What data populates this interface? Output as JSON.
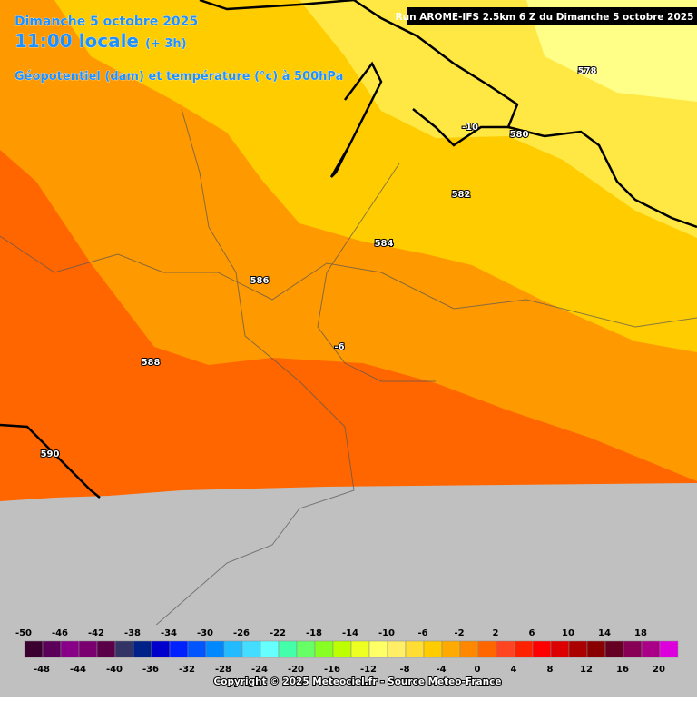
{
  "header": {
    "date": "Dimanche 5 octobre 2025",
    "time": "11:00 locale",
    "offset": "(+ 3h)",
    "field": "Géopotentiel (dam) et température (°c) à 500hPa",
    "run": "Run AROME-IFS 2.5km 6 Z du Dimanche 5 octobre 2025"
  },
  "contour_labels": [
    "578",
    "580",
    "-10",
    "582",
    "584",
    "586",
    "-6",
    "588",
    "590"
  ],
  "colorbar": {
    "values": [
      -50,
      -48,
      -46,
      -44,
      -42,
      -40,
      -38,
      -36,
      -34,
      -32,
      -30,
      -28,
      -26,
      -24,
      -22,
      -20,
      -18,
      -16,
      -14,
      -12,
      -10,
      -8,
      -6,
      -4,
      -2,
      0,
      2,
      4,
      6,
      8,
      10,
      12,
      14,
      16,
      18,
      20
    ],
    "colors": [
      "#3a0030",
      "#5a0058",
      "#880088",
      "#7a0070",
      "#5a0048",
      "#333366",
      "#002288",
      "#0000cc",
      "#0022ff",
      "#0055ff",
      "#0088ff",
      "#22bbff",
      "#44ddff",
      "#66ffff",
      "#44ffaa",
      "#66ff66",
      "#88ff22",
      "#bbff00",
      "#eeff22",
      "#ffff66",
      "#ffee66",
      "#ffdd33",
      "#ffcc00",
      "#ffaa00",
      "#ff8800",
      "#ff6600",
      "#ff4422",
      "#ff2200",
      "#ff0000",
      "#dd0000",
      "#aa0000",
      "#880000",
      "#660022",
      "#880055",
      "#aa0088",
      "#dd00dd"
    ]
  },
  "copyright": "Copyright © 2025 Meteociel.fr - Source Meteo-France"
}
